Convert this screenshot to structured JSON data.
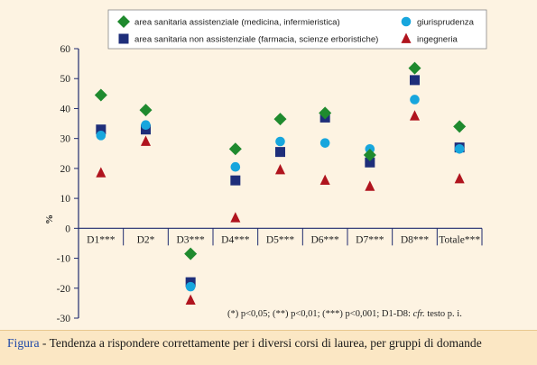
{
  "chart_data": {
    "type": "scatter",
    "categories": [
      "D1***",
      "D2*",
      "D3***",
      "D4***",
      "D5***",
      "D6***",
      "D7***",
      "D8***",
      "Totale***"
    ],
    "ylabel": "%",
    "ylim": [
      -30,
      60
    ],
    "yticks": [
      -30,
      -20,
      -10,
      0,
      10,
      20,
      30,
      40,
      50,
      60
    ],
    "grid": false,
    "legend_position": "top",
    "series": [
      {
        "name": "area sanitaria assistenziale (medicina, infermieristica)",
        "marker": "diamond",
        "color": "#1f8a2e",
        "values": [
          44.5,
          39.5,
          -8.5,
          26.5,
          36.5,
          38.5,
          24.5,
          53.5,
          34
        ]
      },
      {
        "name": "area sanitaria non assistenziale (farmacia, scienze erboristiche)",
        "marker": "square",
        "color": "#1e2e7a",
        "values": [
          33,
          33,
          -18,
          16,
          25.5,
          37,
          22,
          49.5,
          27
        ]
      },
      {
        "name": "giurisprudenza",
        "marker": "circle",
        "color": "#17a6dd",
        "values": [
          31,
          34.5,
          -19.5,
          20.5,
          29,
          28.5,
          26.5,
          43,
          26.5
        ]
      },
      {
        "name": "ingegneria",
        "marker": "triangle",
        "color": "#b0141e",
        "values": [
          18.5,
          29,
          -24,
          3.5,
          19.5,
          16,
          14,
          37.5,
          16.5
        ]
      }
    ]
  },
  "note": {
    "p1": "(*) p<0,05; (**) p<0,01; (***) p<0,001; D1-D8: ",
    "cfr": "cfr.",
    "p2": " testo p. i."
  },
  "caption": {
    "label": "Figura",
    "text": " - Tendenza a rispondere correttamente per i diversi corsi di laurea, per gruppi di domande"
  }
}
